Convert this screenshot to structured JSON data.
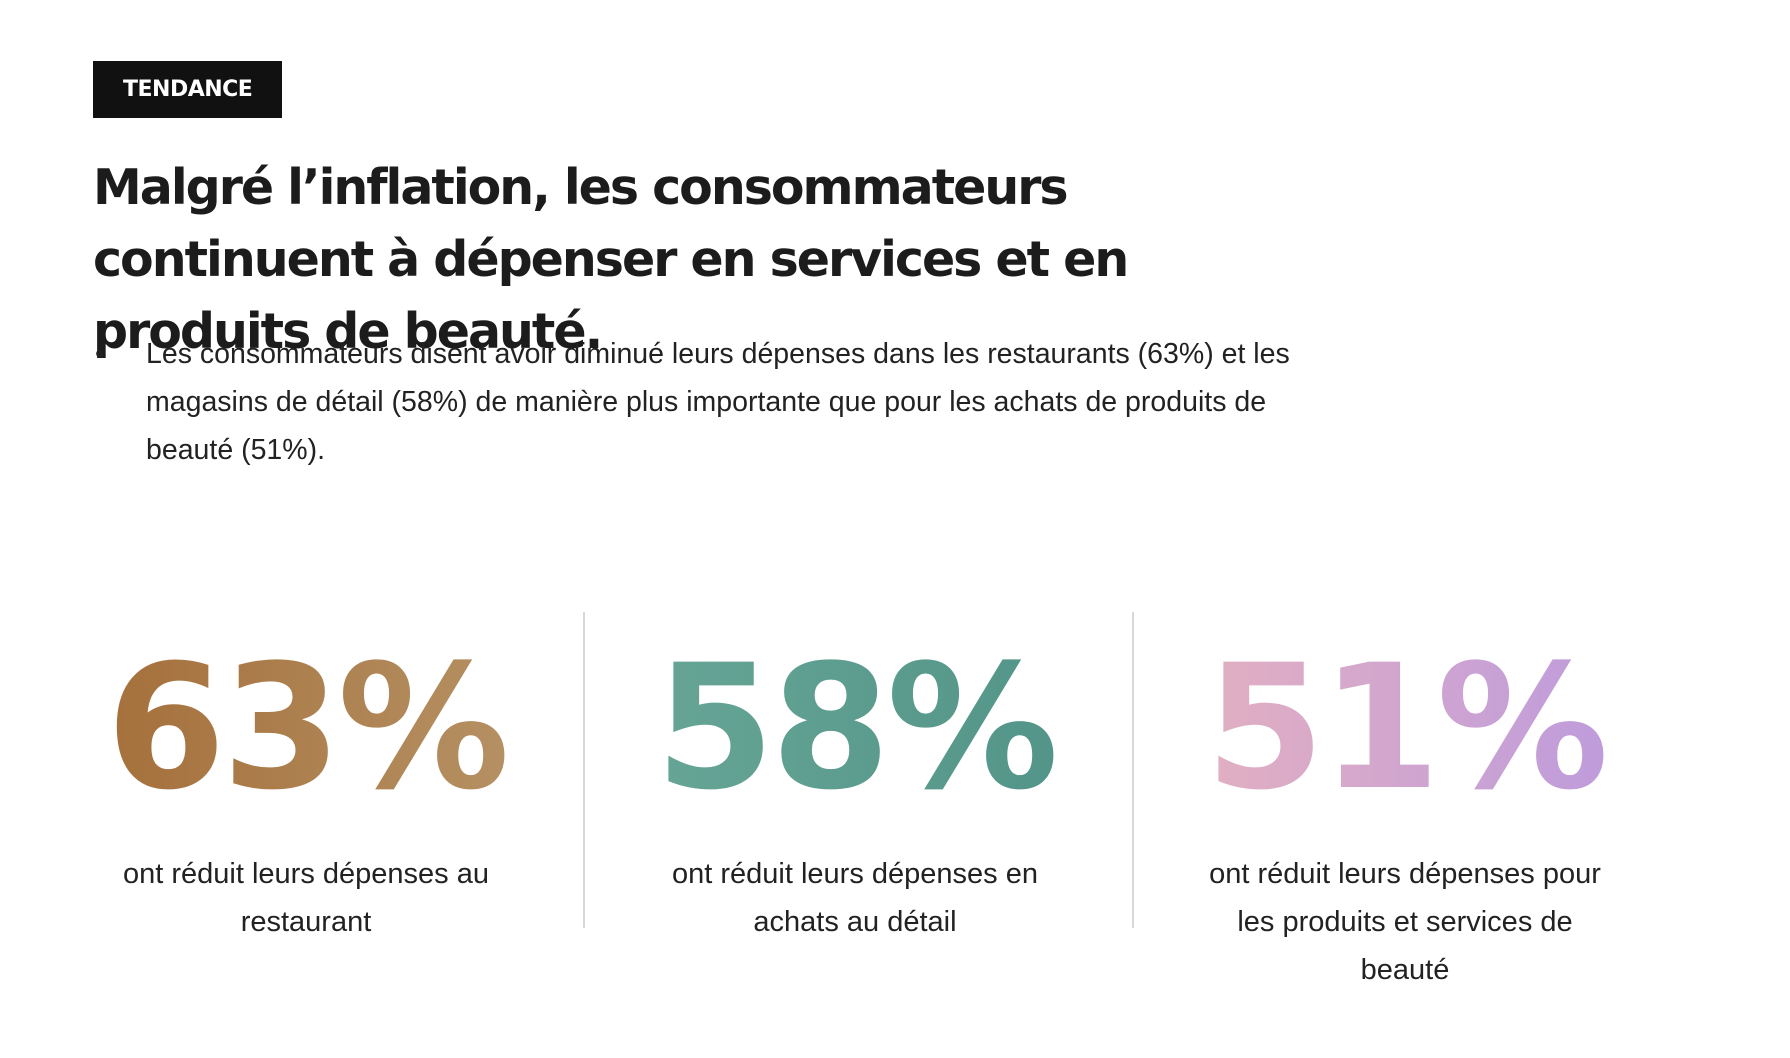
{
  "tag": "TENDANCE",
  "title": "Malgré l’inflation, les consommateurs continuent à dépenser en services et en produits de beauté.",
  "bullets": [
    "Les consommateurs disent avoir diminué leurs dépenses dans les restaurants (63%) et les magasins de détail (58%) de manière plus importante que pour les achats de produits de beauté (51%)."
  ],
  "stats": [
    {
      "value": "63%",
      "caption": "ont réduit leurs dépenses au restaurant",
      "gradient": [
        "#a26a34",
        "#b8966a"
      ]
    },
    {
      "value": "58%",
      "caption": "ont réduit leurs dépenses en achats au détail",
      "gradient": [
        "#6aa898",
        "#4f9286"
      ]
    },
    {
      "value": "51%",
      "caption": "ont réduit leurs dépenses pour les produits et services de beauté",
      "gradient": [
        "#e9b3bd",
        "#b898e0"
      ]
    }
  ],
  "colors": {
    "tag_background": "#111111",
    "divider": "#d8d8d8"
  }
}
